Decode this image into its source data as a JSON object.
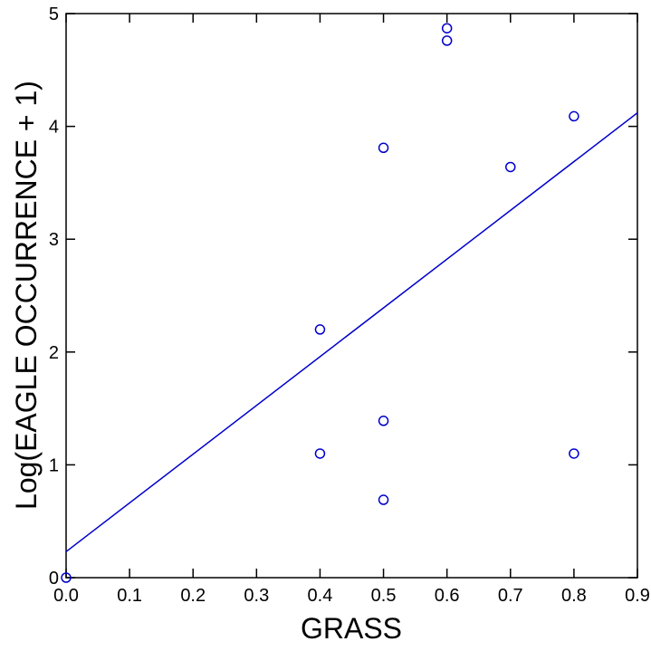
{
  "chart_data": {
    "type": "scatter",
    "title": "",
    "xlabel": "GRASS",
    "ylabel": "Log(EAGLE OCCURRENCE + 1)",
    "xlim": [
      0.0,
      0.9
    ],
    "ylim": [
      0,
      5
    ],
    "x_ticks": [
      0.0,
      0.1,
      0.2,
      0.3,
      0.4,
      0.5,
      0.6,
      0.7,
      0.8,
      0.9
    ],
    "x_tick_labels": [
      "0.0",
      "0.1",
      "0.2",
      "0.3",
      "0.4",
      "0.5",
      "0.6",
      "0.7",
      "0.8",
      "0.9"
    ],
    "y_ticks": [
      0,
      1,
      2,
      3,
      4,
      5
    ],
    "y_tick_labels": [
      "0",
      "1",
      "2",
      "3",
      "4",
      "5"
    ],
    "grid": false,
    "colors": {
      "marker": "#0000cc",
      "fit_line": "#0000cc",
      "axes": "#000000"
    },
    "points": [
      {
        "x": 0.0,
        "y": 0.0
      },
      {
        "x": 0.4,
        "y": 2.2
      },
      {
        "x": 0.4,
        "y": 1.1
      },
      {
        "x": 0.5,
        "y": 3.81
      },
      {
        "x": 0.5,
        "y": 1.39
      },
      {
        "x": 0.5,
        "y": 0.69
      },
      {
        "x": 0.6,
        "y": 4.87
      },
      {
        "x": 0.6,
        "y": 4.76
      },
      {
        "x": 0.7,
        "y": 3.64
      },
      {
        "x": 0.8,
        "y": 4.09
      },
      {
        "x": 0.8,
        "y": 1.1
      }
    ],
    "fit_line": {
      "x": [
        0.0,
        0.9
      ],
      "y": [
        0.23,
        4.12
      ]
    }
  }
}
